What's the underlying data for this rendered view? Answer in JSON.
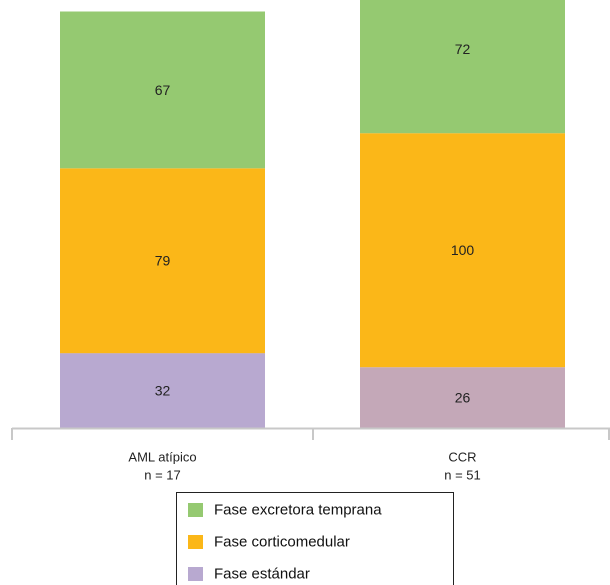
{
  "chart_data": {
    "type": "bar",
    "stacked": true,
    "categories": [
      {
        "name": "AML atípico",
        "n": "n = 17"
      },
      {
        "name": "CCR",
        "n": "n = 51"
      }
    ],
    "series": [
      {
        "name": "Fase estándar",
        "values": [
          32,
          26
        ],
        "colors": [
          "#b8a9d0",
          "#c4a8b8"
        ]
      },
      {
        "name": "Fase corticomedular",
        "values": [
          79,
          100
        ],
        "colors": [
          "#fbb718",
          "#fbb718"
        ]
      },
      {
        "name": "Fase excretora temprana",
        "values": [
          67,
          72
        ],
        "colors": [
          "#95c971",
          "#95c971"
        ]
      }
    ],
    "legend": {
      "placement": "bottom",
      "entries": [
        {
          "label": "Fase excretora temprana",
          "color": "#95c971"
        },
        {
          "label": "Fase corticomedular",
          "color": "#fbb718"
        },
        {
          "label": "Fase estándar",
          "color": "#b8a9d0"
        }
      ]
    },
    "grid": false
  }
}
